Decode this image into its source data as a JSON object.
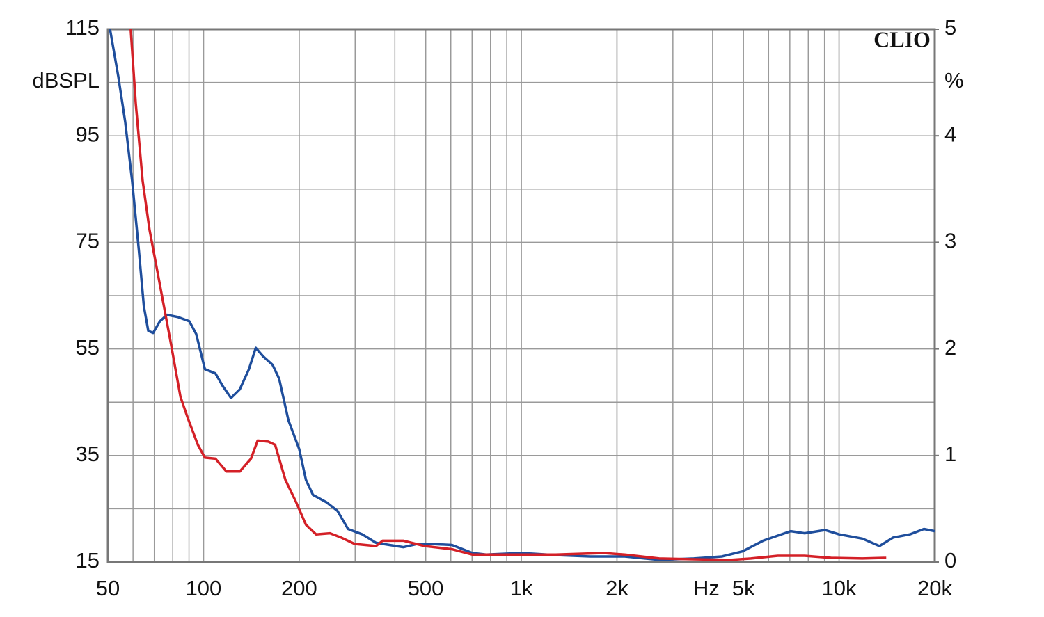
{
  "chart_data": {
    "type": "line",
    "watermark": "CLIO",
    "y_label": "dBSPL",
    "y2_label": "%",
    "x_label": "Hz",
    "xscale": "log",
    "grid": true,
    "xlim": [
      50,
      20000
    ],
    "xticks": [
      50,
      100,
      200,
      500,
      {
        "value": 1000,
        "label": "1k"
      },
      {
        "value": 2000,
        "label": "2k"
      },
      {
        "value": 5000,
        "label": "5k"
      },
      {
        "value": 10000,
        "label": "10k"
      },
      {
        "value": 20000,
        "label": "20k"
      }
    ],
    "ylim": [
      15,
      115
    ],
    "yticks": [
      15,
      35,
      55,
      75,
      95,
      115
    ],
    "y2lim": [
      0,
      5
    ],
    "y2ticks": [
      0,
      1,
      2,
      3,
      4,
      5
    ],
    "series": [
      {
        "color": "#1f4e9c",
        "axis": "y2",
        "x": [
          50.8,
          53.9,
          56.7,
          59.6,
          62.6,
          64.9,
          67,
          69.4,
          72.9,
          76.8,
          82.8,
          90.2,
          94.8,
          101,
          109,
          115,
          122,
          130,
          139,
          146,
          154,
          165,
          173,
          185,
          200,
          210,
          221,
          244,
          264,
          285,
          316,
          349,
          385,
          426,
          470,
          520,
          605,
          702,
          775,
          999,
          1283,
          1647,
          2115,
          2717,
          3489,
          4276,
          4964,
          5764,
          7043,
          7791,
          9032,
          10000,
          11830,
          13400,
          14800,
          16700,
          18500,
          20000
        ],
        "values": [
          5.0,
          4.56,
          4.13,
          3.58,
          2.92,
          2.4,
          2.17,
          2.15,
          2.26,
          2.32,
          2.3,
          2.26,
          2.14,
          1.81,
          1.77,
          1.65,
          1.54,
          1.62,
          1.81,
          2.01,
          1.93,
          1.85,
          1.72,
          1.33,
          1.06,
          0.77,
          0.63,
          0.56,
          0.48,
          0.31,
          0.26,
          0.18,
          0.16,
          0.14,
          0.17,
          0.17,
          0.16,
          0.085,
          0.07,
          0.085,
          0.065,
          0.052,
          0.052,
          0.02,
          0.033,
          0.052,
          0.1,
          0.2,
          0.29,
          0.27,
          0.3,
          0.26,
          0.22,
          0.15,
          0.23,
          0.26,
          0.31,
          0.29
        ]
      },
      {
        "color": "#d42027",
        "axis": "y2",
        "x": [
          59,
          61.2,
          64.3,
          67.6,
          72.9,
          78.6,
          84.6,
          89,
          96,
          101,
          109,
          118,
          130,
          141,
          148,
          160,
          168,
          181,
          195,
          210,
          226,
          250,
          271,
          299,
          349,
          366,
          426,
          496,
          605,
          702,
          999,
          1283,
          1818,
          2115,
          2717,
          3489,
          4557,
          5285,
          6414,
          7791,
          9443,
          11830,
          14070
        ],
        "values": [
          5.0,
          4.3,
          3.58,
          3.12,
          2.6,
          2.08,
          1.55,
          1.36,
          1.1,
          0.98,
          0.97,
          0.85,
          0.85,
          0.97,
          1.14,
          1.13,
          1.1,
          0.77,
          0.57,
          0.35,
          0.26,
          0.27,
          0.23,
          0.17,
          0.15,
          0.2,
          0.2,
          0.15,
          0.12,
          0.07,
          0.07,
          0.07,
          0.085,
          0.07,
          0.033,
          0.026,
          0.02,
          0.033,
          0.059,
          0.059,
          0.039,
          0.033,
          0.039
        ]
      }
    ]
  }
}
